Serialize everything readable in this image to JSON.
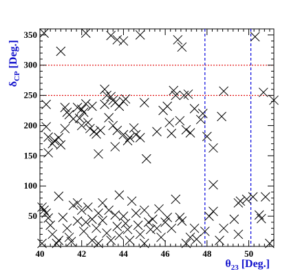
{
  "chart_data": {
    "type": "scatter",
    "marker": "x",
    "marker_color": "#000000",
    "xlabel": {
      "symbol": "θ",
      "sub": "23",
      "unit": " [Deg.]"
    },
    "ylabel": {
      "symbol": "δ",
      "sub": "CP",
      "unit": " [Deg.]"
    },
    "axis_title_color": "#1010cc",
    "xlim": [
      40,
      51.2
    ],
    "ylim": [
      0,
      360
    ],
    "xticks": [
      40,
      42,
      44,
      46,
      48,
      50
    ],
    "yticks": [
      50,
      100,
      150,
      200,
      250,
      300,
      350
    ],
    "grid": false,
    "hlines": [
      {
        "y": 250,
        "color": "#e00000",
        "style": "dotted"
      },
      {
        "y": 300,
        "color": "#e00000",
        "style": "dotted"
      }
    ],
    "vlines": [
      {
        "x": 47.9,
        "color": "#0000dd",
        "style": "dashed"
      },
      {
        "x": 50.1,
        "color": "#0000dd",
        "style": "dashed"
      }
    ],
    "points": [
      [
        40.2,
        353
      ],
      [
        41.0,
        323
      ],
      [
        42.2,
        353
      ],
      [
        43.4,
        349
      ],
      [
        43.7,
        342
      ],
      [
        44.0,
        340
      ],
      [
        44.8,
        350
      ],
      [
        46.6,
        342
      ],
      [
        46.8,
        330
      ],
      [
        50.3,
        347
      ],
      [
        40.3,
        235
      ],
      [
        40.3,
        198
      ],
      [
        40.4,
        181
      ],
      [
        40.4,
        155
      ],
      [
        40.7,
        175
      ],
      [
        40.9,
        180
      ],
      [
        40.6,
        170
      ],
      [
        41.0,
        168
      ],
      [
        41.2,
        195
      ],
      [
        41.2,
        230
      ],
      [
        41.3,
        222
      ],
      [
        41.4,
        218
      ],
      [
        41.6,
        211
      ],
      [
        41.8,
        230
      ],
      [
        41.9,
        212
      ],
      [
        42.0,
        227
      ],
      [
        42.1,
        222
      ],
      [
        42.2,
        236
      ],
      [
        42.0,
        200
      ],
      [
        42.3,
        205
      ],
      [
        42.5,
        232
      ],
      [
        42.4,
        195
      ],
      [
        42.6,
        190
      ],
      [
        42.7,
        186
      ],
      [
        42.9,
        192
      ],
      [
        42.8,
        153
      ],
      [
        43.1,
        260
      ],
      [
        43.1,
        235
      ],
      [
        43.2,
        250
      ],
      [
        43.4,
        248
      ],
      [
        43.5,
        242
      ],
      [
        43.6,
        238
      ],
      [
        43.3,
        213
      ],
      [
        43.5,
        200
      ],
      [
        43.7,
        192
      ],
      [
        43.6,
        165
      ],
      [
        43.8,
        232
      ],
      [
        44.0,
        240
      ],
      [
        44.1,
        244
      ],
      [
        44.0,
        185
      ],
      [
        44.2,
        175
      ],
      [
        44.3,
        180
      ],
      [
        44.5,
        196
      ],
      [
        44.6,
        185
      ],
      [
        44.8,
        180
      ],
      [
        45.0,
        238
      ],
      [
        45.1,
        145
      ],
      [
        45.6,
        190
      ],
      [
        45.9,
        225
      ],
      [
        46.1,
        232
      ],
      [
        46.4,
        258
      ],
      [
        46.5,
        250
      ],
      [
        46.2,
        205
      ],
      [
        46.3,
        187
      ],
      [
        46.7,
        208
      ],
      [
        46.9,
        250
      ],
      [
        47.1,
        252
      ],
      [
        47.0,
        193
      ],
      [
        47.2,
        188
      ],
      [
        47.4,
        228
      ],
      [
        47.7,
        210
      ],
      [
        47.8,
        220
      ],
      [
        48.0,
        182
      ],
      [
        48.3,
        163
      ],
      [
        48.7,
        215
      ],
      [
        48.8,
        257
      ],
      [
        50.7,
        255
      ],
      [
        51.2,
        242
      ],
      [
        40.1,
        65
      ],
      [
        40.1,
        5
      ],
      [
        40.2,
        60
      ],
      [
        40.3,
        55
      ],
      [
        40.4,
        47
      ],
      [
        40.5,
        35
      ],
      [
        40.6,
        20
      ],
      [
        40.8,
        5
      ],
      [
        40.9,
        10
      ],
      [
        40.9,
        83
      ],
      [
        41.1,
        48
      ],
      [
        41.3,
        30
      ],
      [
        41.4,
        15
      ],
      [
        41.5,
        8
      ],
      [
        41.6,
        68
      ],
      [
        41.8,
        72
      ],
      [
        41.8,
        42
      ],
      [
        42.0,
        60
      ],
      [
        42.1,
        25
      ],
      [
        42.2,
        40
      ],
      [
        42.3,
        65
      ],
      [
        42.5,
        45
      ],
      [
        42.5,
        10
      ],
      [
        42.7,
        30
      ],
      [
        42.8,
        55
      ],
      [
        42.8,
        5
      ],
      [
        43.0,
        72
      ],
      [
        43.0,
        43
      ],
      [
        43.2,
        22
      ],
      [
        43.3,
        60
      ],
      [
        43.4,
        10
      ],
      [
        43.6,
        52
      ],
      [
        43.7,
        33
      ],
      [
        43.8,
        18
      ],
      [
        43.8,
        85
      ],
      [
        44.0,
        50
      ],
      [
        44.1,
        38
      ],
      [
        44.2,
        28
      ],
      [
        44.3,
        10
      ],
      [
        44.4,
        75
      ],
      [
        44.6,
        55
      ],
      [
        44.7,
        35
      ],
      [
        44.8,
        20
      ],
      [
        45.0,
        60
      ],
      [
        45.0,
        5
      ],
      [
        45.2,
        40
      ],
      [
        45.3,
        28
      ],
      [
        45.4,
        45
      ],
      [
        45.6,
        30
      ],
      [
        45.7,
        62
      ],
      [
        45.8,
        15
      ],
      [
        46.0,
        40
      ],
      [
        46.1,
        48
      ],
      [
        46.3,
        30
      ],
      [
        46.5,
        78
      ],
      [
        46.7,
        48
      ],
      [
        46.8,
        42
      ],
      [
        47.0,
        5
      ],
      [
        47.2,
        15
      ],
      [
        47.4,
        30
      ],
      [
        47.5,
        12
      ],
      [
        47.9,
        25
      ],
      [
        48.1,
        50
      ],
      [
        48.3,
        58
      ],
      [
        48.3,
        102
      ],
      [
        48.6,
        10
      ],
      [
        48.8,
        30
      ],
      [
        49.3,
        45
      ],
      [
        49.5,
        20
      ],
      [
        49.5,
        72
      ],
      [
        49.6,
        75
      ],
      [
        49.9,
        78
      ],
      [
        50.2,
        82
      ],
      [
        50.5,
        52
      ],
      [
        50.6,
        46
      ],
      [
        50.8,
        82
      ],
      [
        51.0,
        5
      ]
    ]
  }
}
